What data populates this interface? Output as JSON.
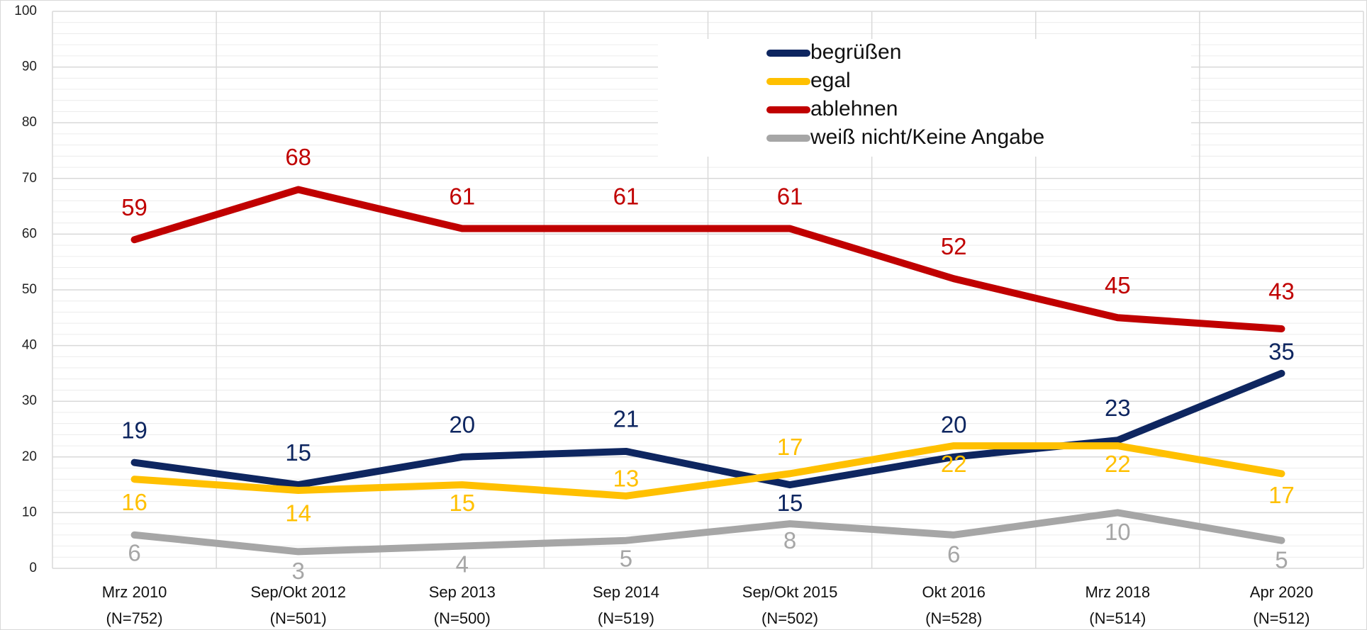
{
  "chart_data": {
    "type": "line",
    "categories": [
      "Mrz 2010",
      "Sep/Okt 2012",
      "Sep 2013",
      "Sep 2014",
      "Sep/Okt 2015",
      "Okt 2016",
      "Mrz 2018",
      "Apr 2020"
    ],
    "category_notes": [
      "(N=752)",
      "(N=501)",
      "(N=500)",
      "(N=519)",
      "(N=502)",
      "(N=528)",
      "(N=514)",
      "(N=512)"
    ],
    "series": [
      {
        "name": "begrüßen",
        "color": "#0e2660",
        "values": [
          19,
          15,
          20,
          21,
          15,
          20,
          23,
          35
        ]
      },
      {
        "name": "egal",
        "color": "#ffc000",
        "values": [
          16,
          14,
          15,
          13,
          17,
          22,
          22,
          17
        ]
      },
      {
        "name": "ablehnen",
        "color": "#c00000",
        "values": [
          59,
          68,
          61,
          61,
          61,
          52,
          45,
          43
        ]
      },
      {
        "name": "weiß nicht/Keine Angabe",
        "color": "#a6a6a6",
        "values": [
          6,
          3,
          4,
          5,
          8,
          6,
          10,
          5
        ]
      }
    ],
    "ylim": [
      0,
      100
    ],
    "yticks": [
      0,
      10,
      20,
      30,
      40,
      50,
      60,
      70,
      80,
      90,
      100
    ],
    "grid": true,
    "minor_grid": true,
    "legend": "top-right"
  }
}
